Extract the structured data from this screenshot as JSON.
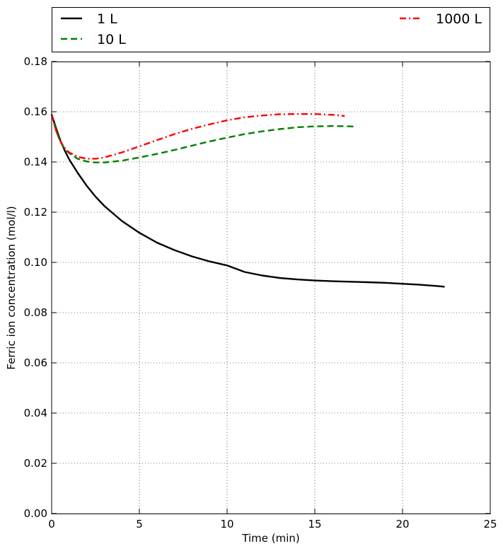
{
  "chart_data": {
    "type": "line",
    "title": "",
    "xlabel": "Time (min)",
    "ylabel": "Ferric ion concentration (mol/l)",
    "xlim": [
      0,
      25
    ],
    "ylim": [
      0,
      0.18
    ],
    "xticks": [
      0,
      5,
      10,
      15,
      20,
      25
    ],
    "yticks": [
      0.0,
      0.02,
      0.04,
      0.06,
      0.08,
      0.1,
      0.12,
      0.14,
      0.16,
      0.18
    ],
    "xtick_labels": [
      "0",
      "5",
      "10",
      "15",
      "20",
      "25"
    ],
    "ytick_labels": [
      "0.00",
      "0.02",
      "0.04",
      "0.06",
      "0.08",
      "0.10",
      "0.12",
      "0.14",
      "0.16",
      "0.18"
    ],
    "grid": true,
    "legend_position": "above plot, outside",
    "series": [
      {
        "name": "1 L",
        "color": "#000000",
        "style": "solid",
        "x": [
          0,
          0.25,
          0.5,
          0.75,
          1,
          1.5,
          2,
          2.5,
          3,
          4,
          5,
          6,
          7,
          8,
          9,
          10,
          11,
          12,
          13,
          14,
          15,
          16,
          17,
          18,
          19,
          20,
          21,
          22,
          22.4
        ],
        "y": [
          0.159,
          0.1535,
          0.1485,
          0.1445,
          0.141,
          0.1355,
          0.1305,
          0.1262,
          0.1225,
          0.1165,
          0.1118,
          0.1079,
          0.1049,
          0.1024,
          0.1004,
          0.0988,
          0.0962,
          0.0948,
          0.0938,
          0.0932,
          0.0928,
          0.0925,
          0.0923,
          0.0921,
          0.0919,
          0.0915,
          0.0911,
          0.0906,
          0.0903
        ]
      },
      {
        "name": "10 L",
        "color": "#008000",
        "style": "dashed",
        "x": [
          0,
          0.25,
          0.5,
          0.75,
          1,
          1.5,
          2,
          2.5,
          3,
          4,
          5,
          6,
          7,
          8,
          9,
          10,
          11,
          12,
          13,
          14,
          15,
          16,
          17,
          17.2
        ],
        "y": [
          0.159,
          0.1525,
          0.148,
          0.1452,
          0.1435,
          0.1412,
          0.1402,
          0.1398,
          0.1398,
          0.1405,
          0.1418,
          0.1432,
          0.1448,
          0.1465,
          0.1482,
          0.1497,
          0.1511,
          0.1522,
          0.1531,
          0.1538,
          0.1542,
          0.1543,
          0.1542,
          0.1541
        ]
      },
      {
        "name": "1000 L",
        "color": "#ff0000",
        "style": "dashdot",
        "x": [
          0,
          0.25,
          0.5,
          0.75,
          1,
          1.5,
          2,
          2.5,
          3,
          4,
          5,
          6,
          7,
          8,
          9,
          10,
          11,
          12,
          13,
          14,
          15,
          16,
          16.7
        ],
        "y": [
          0.159,
          0.1525,
          0.1482,
          0.1455,
          0.1438,
          0.142,
          0.1413,
          0.1413,
          0.1418,
          0.1438,
          0.1462,
          0.1487,
          0.1511,
          0.1532,
          0.155,
          0.1566,
          0.1578,
          0.1585,
          0.159,
          0.1591,
          0.1591,
          0.1588,
          0.1583
        ]
      }
    ]
  }
}
